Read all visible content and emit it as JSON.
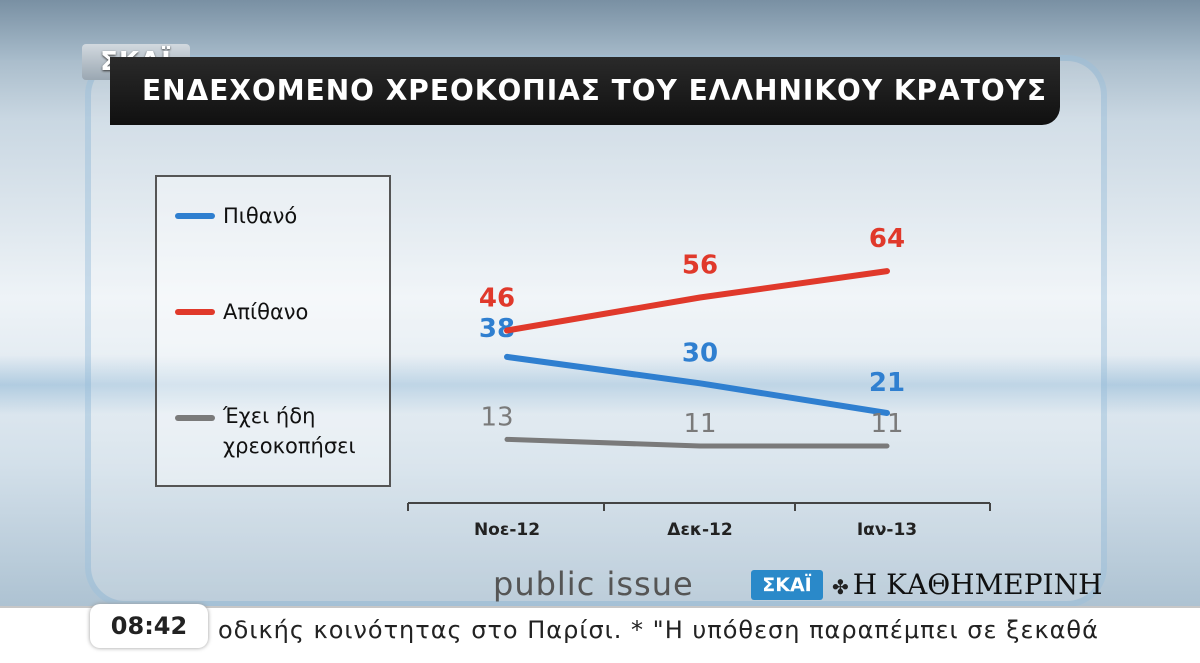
{
  "channel": {
    "logo": "ΣΚΑΪ"
  },
  "header": {
    "title": "ΕΝΔΕΧΟΜΕΝΟ ΧΡΕΟΚΟΠΙΑΣ ΤΟΥ ΕΛΛΗΝΙΚΟΥ ΚΡΑΤΟΥΣ"
  },
  "chart_data": {
    "type": "line",
    "title": "ΕΝΔΕΧΟΜΕΝΟ ΧΡΕΟΚΟΠΙΑΣ ΤΟΥ ΕΛΛΗΝΙΚΟΥ ΚΡΑΤΟΥΣ",
    "categories": [
      "Νοε-12",
      "Δεκ-12",
      "Ιαν-13"
    ],
    "series": [
      {
        "name": "Πιθανό",
        "values": [
          38,
          30,
          21
        ],
        "color": "#2f7fd0"
      },
      {
        "name": "Απίθανο",
        "values": [
          46,
          56,
          64
        ],
        "color": "#e0392b"
      },
      {
        "name": "Έχει ήδη χρεοκοπήσει",
        "values": [
          13,
          11,
          11
        ],
        "color": "#7a7a7a"
      }
    ],
    "grid": false,
    "legend": "left"
  },
  "legend": {
    "items": [
      {
        "label": "Πιθανό",
        "color": "#2f7fd0"
      },
      {
        "label": "Απίθανο",
        "color": "#e0392b"
      },
      {
        "label_line1": "Έχει ήδη",
        "label_line2": "χρεοκοπήσει",
        "color": "#7a7a7a"
      }
    ]
  },
  "source": {
    "pollster": "public issue",
    "badge": "ΣΚΑΪ",
    "newspaper": "Η ΚΑΘΗΜΕΡΙΝΗ"
  },
  "ticker": {
    "time": "08:42",
    "text": "οδικής κοινότητας στο Παρίσι.  *  \"Η υπόθεση παραπέμπει σε ξεκαθά"
  }
}
